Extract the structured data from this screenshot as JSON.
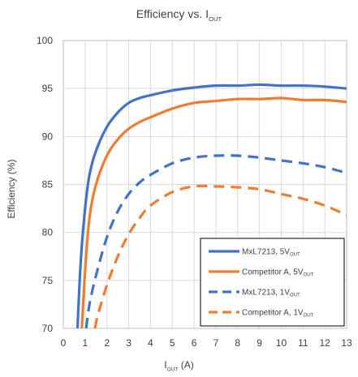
{
  "chart_data": {
    "type": "line",
    "title": "Efficiency vs. I",
    "title_sub": "OUT",
    "xlabel": "I",
    "xlabel_sub": "OUT",
    "xlabel_suffix": " (A)",
    "ylabel": "Efficiency (%)",
    "xlim": [
      0,
      13
    ],
    "ylim": [
      70,
      100
    ],
    "xticks": [
      "0",
      "1",
      "2",
      "3",
      "4",
      "5",
      "6",
      "7",
      "8",
      "9",
      "10",
      "11",
      "12",
      "13"
    ],
    "yticks": [
      "70",
      "75",
      "80",
      "85",
      "90",
      "95",
      "100"
    ],
    "grid": true,
    "legend_position": "bottom-right",
    "series": [
      {
        "name": "MxL7213, 5V",
        "name_sub": "OUT",
        "color": "#4472C4",
        "dash": "solid",
        "x": [
          0.65,
          0.8,
          1.0,
          1.2,
          1.5,
          2.0,
          2.5,
          3.0,
          3.5,
          4.0,
          5.0,
          6.0,
          7.0,
          8.0,
          9.0,
          10.0,
          11.0,
          12.0,
          13.0
        ],
        "y": [
          70.0,
          77.0,
          82.5,
          86.0,
          88.5,
          91.0,
          92.5,
          93.5,
          94.0,
          94.3,
          94.8,
          95.1,
          95.3,
          95.3,
          95.4,
          95.3,
          95.3,
          95.2,
          95.0
        ]
      },
      {
        "name": "Competitor A, 5V",
        "name_sub": "OUT",
        "color": "#ED7D31",
        "dash": "solid",
        "x": [
          0.85,
          1.0,
          1.2,
          1.5,
          2.0,
          2.5,
          3.0,
          3.5,
          4.0,
          5.0,
          6.0,
          7.0,
          8.0,
          9.0,
          10.0,
          11.0,
          12.0,
          13.0
        ],
        "y": [
          70.0,
          76.0,
          81.5,
          85.0,
          88.0,
          89.7,
          90.8,
          91.5,
          92.0,
          92.9,
          93.5,
          93.7,
          93.9,
          93.9,
          94.0,
          93.8,
          93.8,
          93.6
        ]
      },
      {
        "name": "MxL7213, 1V",
        "name_sub": "OUT",
        "color": "#4472C4",
        "dash": "dashed",
        "x": [
          1.05,
          1.2,
          1.5,
          2.0,
          2.5,
          3.0,
          3.5,
          4.0,
          5.0,
          6.0,
          7.0,
          8.0,
          9.0,
          10.0,
          11.0,
          12.0,
          13.0
        ],
        "y": [
          70.0,
          72.5,
          75.5,
          79.5,
          82.2,
          84.0,
          85.2,
          86.0,
          87.2,
          87.8,
          88.0,
          88.0,
          87.8,
          87.5,
          87.2,
          86.8,
          86.2
        ]
      },
      {
        "name": "Competitor A, 1V",
        "name_sub": "OUT",
        "color": "#ED7D31",
        "dash": "dashed",
        "x": [
          1.45,
          1.6,
          2.0,
          2.5,
          3.0,
          3.5,
          4.0,
          5.0,
          6.0,
          7.0,
          8.0,
          9.0,
          10.0,
          11.0,
          12.0,
          13.0
        ],
        "y": [
          70.0,
          71.5,
          74.5,
          77.5,
          79.8,
          81.5,
          82.8,
          84.2,
          84.8,
          84.8,
          84.7,
          84.5,
          84.0,
          83.5,
          82.8,
          81.8
        ]
      }
    ]
  }
}
